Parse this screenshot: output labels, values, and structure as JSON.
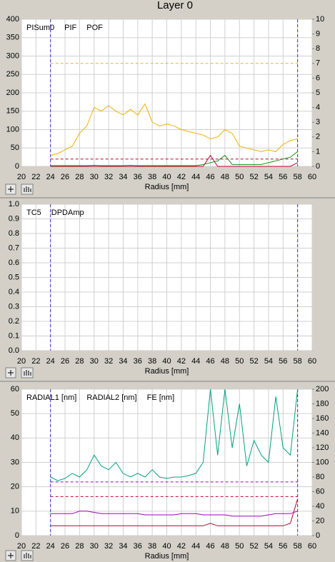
{
  "header": {
    "title": "Layer 0"
  },
  "chart_data": [
    {
      "type": "line",
      "xlabel": "Radius [mm]",
      "xlim": [
        20,
        60
      ],
      "xticks": [
        20,
        22,
        24,
        26,
        28,
        30,
        32,
        34,
        36,
        38,
        40,
        42,
        44,
        46,
        48,
        50,
        52,
        54,
        56,
        58,
        60
      ],
      "ylim": [
        0,
        400
      ],
      "yticks": [
        0,
        50,
        100,
        150,
        200,
        250,
        300,
        350,
        400
      ],
      "y2lim": [
        0,
        10
      ],
      "y2ticks": [
        0,
        1,
        2,
        3,
        4,
        5,
        6,
        7,
        8,
        9,
        10
      ],
      "grid": true,
      "vlines": [
        24,
        58
      ],
      "vline_color": "#4030c0",
      "hlines": [
        {
          "value": 280,
          "color": "#e0b040"
        },
        {
          "value": 20,
          "color": "#c00030"
        }
      ],
      "x": [
        24,
        25,
        26,
        27,
        28,
        29,
        30,
        31,
        32,
        33,
        34,
        35,
        36,
        37,
        38,
        39,
        40,
        41,
        42,
        43,
        44,
        45,
        46,
        47,
        48,
        49,
        50,
        51,
        52,
        53,
        54,
        55,
        56,
        57,
        58
      ],
      "series": [
        {
          "name": "PISum0",
          "color": "#f0b000",
          "values": [
            30,
            35,
            45,
            55,
            90,
            110,
            160,
            150,
            165,
            150,
            140,
            155,
            140,
            170,
            120,
            110,
            115,
            110,
            100,
            95,
            90,
            85,
            75,
            80,
            100,
            90,
            55,
            50,
            45,
            40,
            45,
            40,
            60,
            70,
            75
          ]
        },
        {
          "name": "PIF",
          "color": "#109010",
          "values": [
            2,
            2,
            2,
            2,
            2,
            2,
            3,
            2,
            2,
            2,
            2,
            3,
            2,
            2,
            2,
            2,
            2,
            2,
            2,
            2,
            2,
            5,
            10,
            15,
            30,
            5,
            5,
            5,
            5,
            5,
            10,
            15,
            20,
            25,
            40
          ]
        },
        {
          "name": "POF",
          "color": "#c00030",
          "values": [
            0,
            0,
            0,
            0,
            0,
            0,
            0,
            0,
            0,
            0,
            0,
            0,
            0,
            0,
            0,
            0,
            0,
            0,
            0,
            0,
            0,
            0,
            30,
            0,
            0,
            0,
            0,
            0,
            0,
            0,
            0,
            0,
            0,
            0,
            10
          ]
        }
      ]
    },
    {
      "type": "line",
      "xlabel": "Radius [mm]",
      "xlim": [
        20,
        60
      ],
      "xticks": [
        20,
        22,
        24,
        26,
        28,
        30,
        32,
        34,
        36,
        38,
        40,
        42,
        44,
        46,
        48,
        50,
        52,
        54,
        56,
        58,
        60
      ],
      "ylim": [
        0,
        1
      ],
      "yticks": [
        {
          "value": 0,
          "label": "0.0"
        },
        0.1,
        0.2,
        0.3,
        0.4,
        0.5,
        0.6,
        0.7,
        0.8,
        0.9,
        {
          "value": 1,
          "label": "1.0"
        }
      ],
      "grid": true,
      "vlines": [
        24,
        58
      ],
      "vline_color": "#4030c0",
      "series": [
        {
          "name": "TC5",
          "color": "#109010",
          "values": []
        },
        {
          "name": "DPDAmp",
          "color": "#c00030",
          "values": []
        }
      ]
    },
    {
      "type": "line",
      "xlabel": "Radius [mm]",
      "xlim": [
        20,
        60
      ],
      "xticks": [
        20,
        22,
        24,
        26,
        28,
        30,
        32,
        34,
        36,
        38,
        40,
        42,
        44,
        46,
        48,
        50,
        52,
        54,
        56,
        58,
        60
      ],
      "ylim": [
        0,
        60
      ],
      "yticks": [
        0,
        10,
        20,
        30,
        40,
        50,
        60
      ],
      "y2lim": [
        0,
        200
      ],
      "y2ticks": [
        0,
        20,
        40,
        60,
        80,
        100,
        120,
        140,
        160,
        180,
        200
      ],
      "grid": true,
      "vlines": [
        24,
        58
      ],
      "vline_color": "#4030c0",
      "hlines": [
        {
          "value": 22,
          "color": "#a000c0"
        },
        {
          "value": 16,
          "color": "#c00030"
        }
      ],
      "x": [
        24,
        25,
        26,
        27,
        28,
        29,
        30,
        31,
        32,
        33,
        34,
        35,
        36,
        37,
        38,
        39,
        40,
        41,
        42,
        43,
        44,
        45,
        46,
        47,
        48,
        49,
        50,
        51,
        52,
        53,
        54,
        55,
        56,
        57,
        58
      ],
      "series": [
        {
          "name": "RADIAL1 [nm]",
          "color": "#a000c0",
          "values": [
            9,
            9,
            9,
            9,
            10,
            10,
            9.5,
            9,
            9,
            9,
            9,
            9,
            9,
            8.5,
            8.5,
            8.5,
            8.5,
            8.5,
            9,
            9,
            9,
            8.5,
            8.5,
            8.5,
            8.5,
            8,
            8,
            8,
            8,
            8,
            8.5,
            9,
            9,
            9,
            10
          ]
        },
        {
          "name": "RADIAL2 [nm]",
          "color": "#c00030",
          "values": [
            4,
            4,
            4,
            4,
            4,
            4,
            4,
            4,
            4,
            4,
            4,
            4,
            4,
            4,
            4,
            4,
            4,
            4,
            4,
            4,
            4,
            4,
            5,
            4,
            4,
            4,
            4,
            4,
            4,
            4,
            4,
            4,
            4,
            5,
            15
          ]
        },
        {
          "name": "FE [nm]",
          "color": "#00a080",
          "axis": "y2",
          "values": [
            80,
            75,
            78,
            85,
            80,
            90,
            110,
            95,
            90,
            100,
            85,
            80,
            85,
            80,
            90,
            80,
            78,
            80,
            80,
            82,
            85,
            100,
            200,
            110,
            200,
            120,
            180,
            95,
            130,
            110,
            100,
            190,
            120,
            110,
            200
          ]
        }
      ]
    }
  ]
}
